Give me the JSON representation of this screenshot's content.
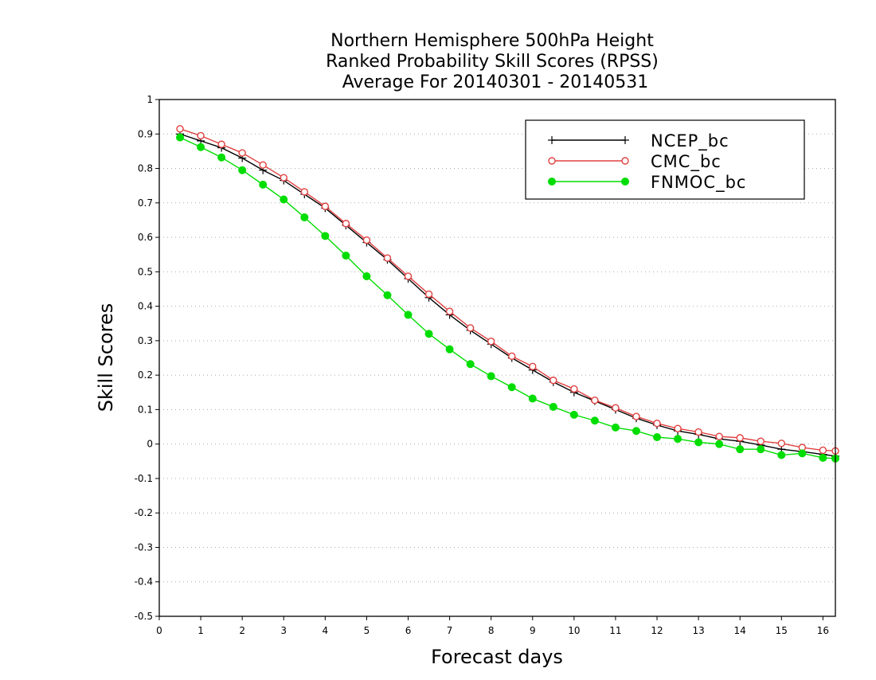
{
  "chart_data": {
    "type": "line",
    "title_lines": [
      "Northern Hemisphere 500hPa Height",
      "Ranked Probability Skill Scores (RPSS)",
      "Average For 20140301 - 20140531"
    ],
    "xlabel": "Forecast days",
    "ylabel": "Skill Scores",
    "xlim": [
      0,
      16.3
    ],
    "ylim": [
      -0.5,
      1
    ],
    "xticks": [
      "0",
      "1",
      "2",
      "3",
      "4",
      "5",
      "6",
      "7",
      "8",
      "9",
      "10",
      "11",
      "12",
      "13",
      "14",
      "15",
      "16"
    ],
    "yticks": [
      "-0.5",
      "-0.4",
      "-0.3",
      "-0.2",
      "-0.1",
      "0",
      "0.1",
      "0.2",
      "0.3",
      "0.4",
      "0.5",
      "0.6",
      "0.7",
      "0.8",
      "0.9",
      "1"
    ],
    "grid": "horizontal dotted",
    "legend_position": "top-right",
    "x": [
      0.5,
      1,
      1.5,
      2,
      2.5,
      3,
      3.5,
      4,
      4.5,
      5,
      5.5,
      6,
      6.5,
      7,
      7.5,
      8,
      8.5,
      9,
      9.5,
      10,
      10.5,
      11,
      11.5,
      12,
      12.5,
      13,
      13.5,
      14,
      14.5,
      15,
      15.5,
      16,
      16.3
    ],
    "series": [
      {
        "name": "NCEP_bc",
        "color": "#000000",
        "marker": "plus",
        "values": [
          0.9,
          0.88,
          0.86,
          0.83,
          0.795,
          0.765,
          0.725,
          0.685,
          0.635,
          0.585,
          0.535,
          0.48,
          0.425,
          0.375,
          0.33,
          0.29,
          0.25,
          0.215,
          0.18,
          0.15,
          0.125,
          0.1,
          0.075,
          0.055,
          0.038,
          0.028,
          0.015,
          0.008,
          -0.003,
          -0.015,
          -0.022,
          -0.03,
          -0.035
        ]
      },
      {
        "name": "CMC_bc",
        "color": "#e04040",
        "marker": "open-circle",
        "values": [
          0.915,
          0.895,
          0.87,
          0.845,
          0.81,
          0.773,
          0.732,
          0.69,
          0.64,
          0.592,
          0.54,
          0.487,
          0.435,
          0.385,
          0.337,
          0.298,
          0.255,
          0.225,
          0.185,
          0.16,
          0.127,
          0.105,
          0.08,
          0.06,
          0.045,
          0.035,
          0.022,
          0.018,
          0.008,
          0.002,
          -0.01,
          -0.018,
          -0.02
        ]
      },
      {
        "name": "FNMOC_bc",
        "color": "#00dd00",
        "marker": "filled-circle",
        "values": [
          0.89,
          0.862,
          0.832,
          0.795,
          0.753,
          0.71,
          0.658,
          0.604,
          0.547,
          0.487,
          0.432,
          0.375,
          0.32,
          0.275,
          0.232,
          0.197,
          0.165,
          0.132,
          0.108,
          0.085,
          0.068,
          0.048,
          0.038,
          0.02,
          0.015,
          0.005,
          0.0,
          -0.015,
          -0.015,
          -0.032,
          -0.027,
          -0.04,
          -0.042
        ]
      }
    ]
  }
}
